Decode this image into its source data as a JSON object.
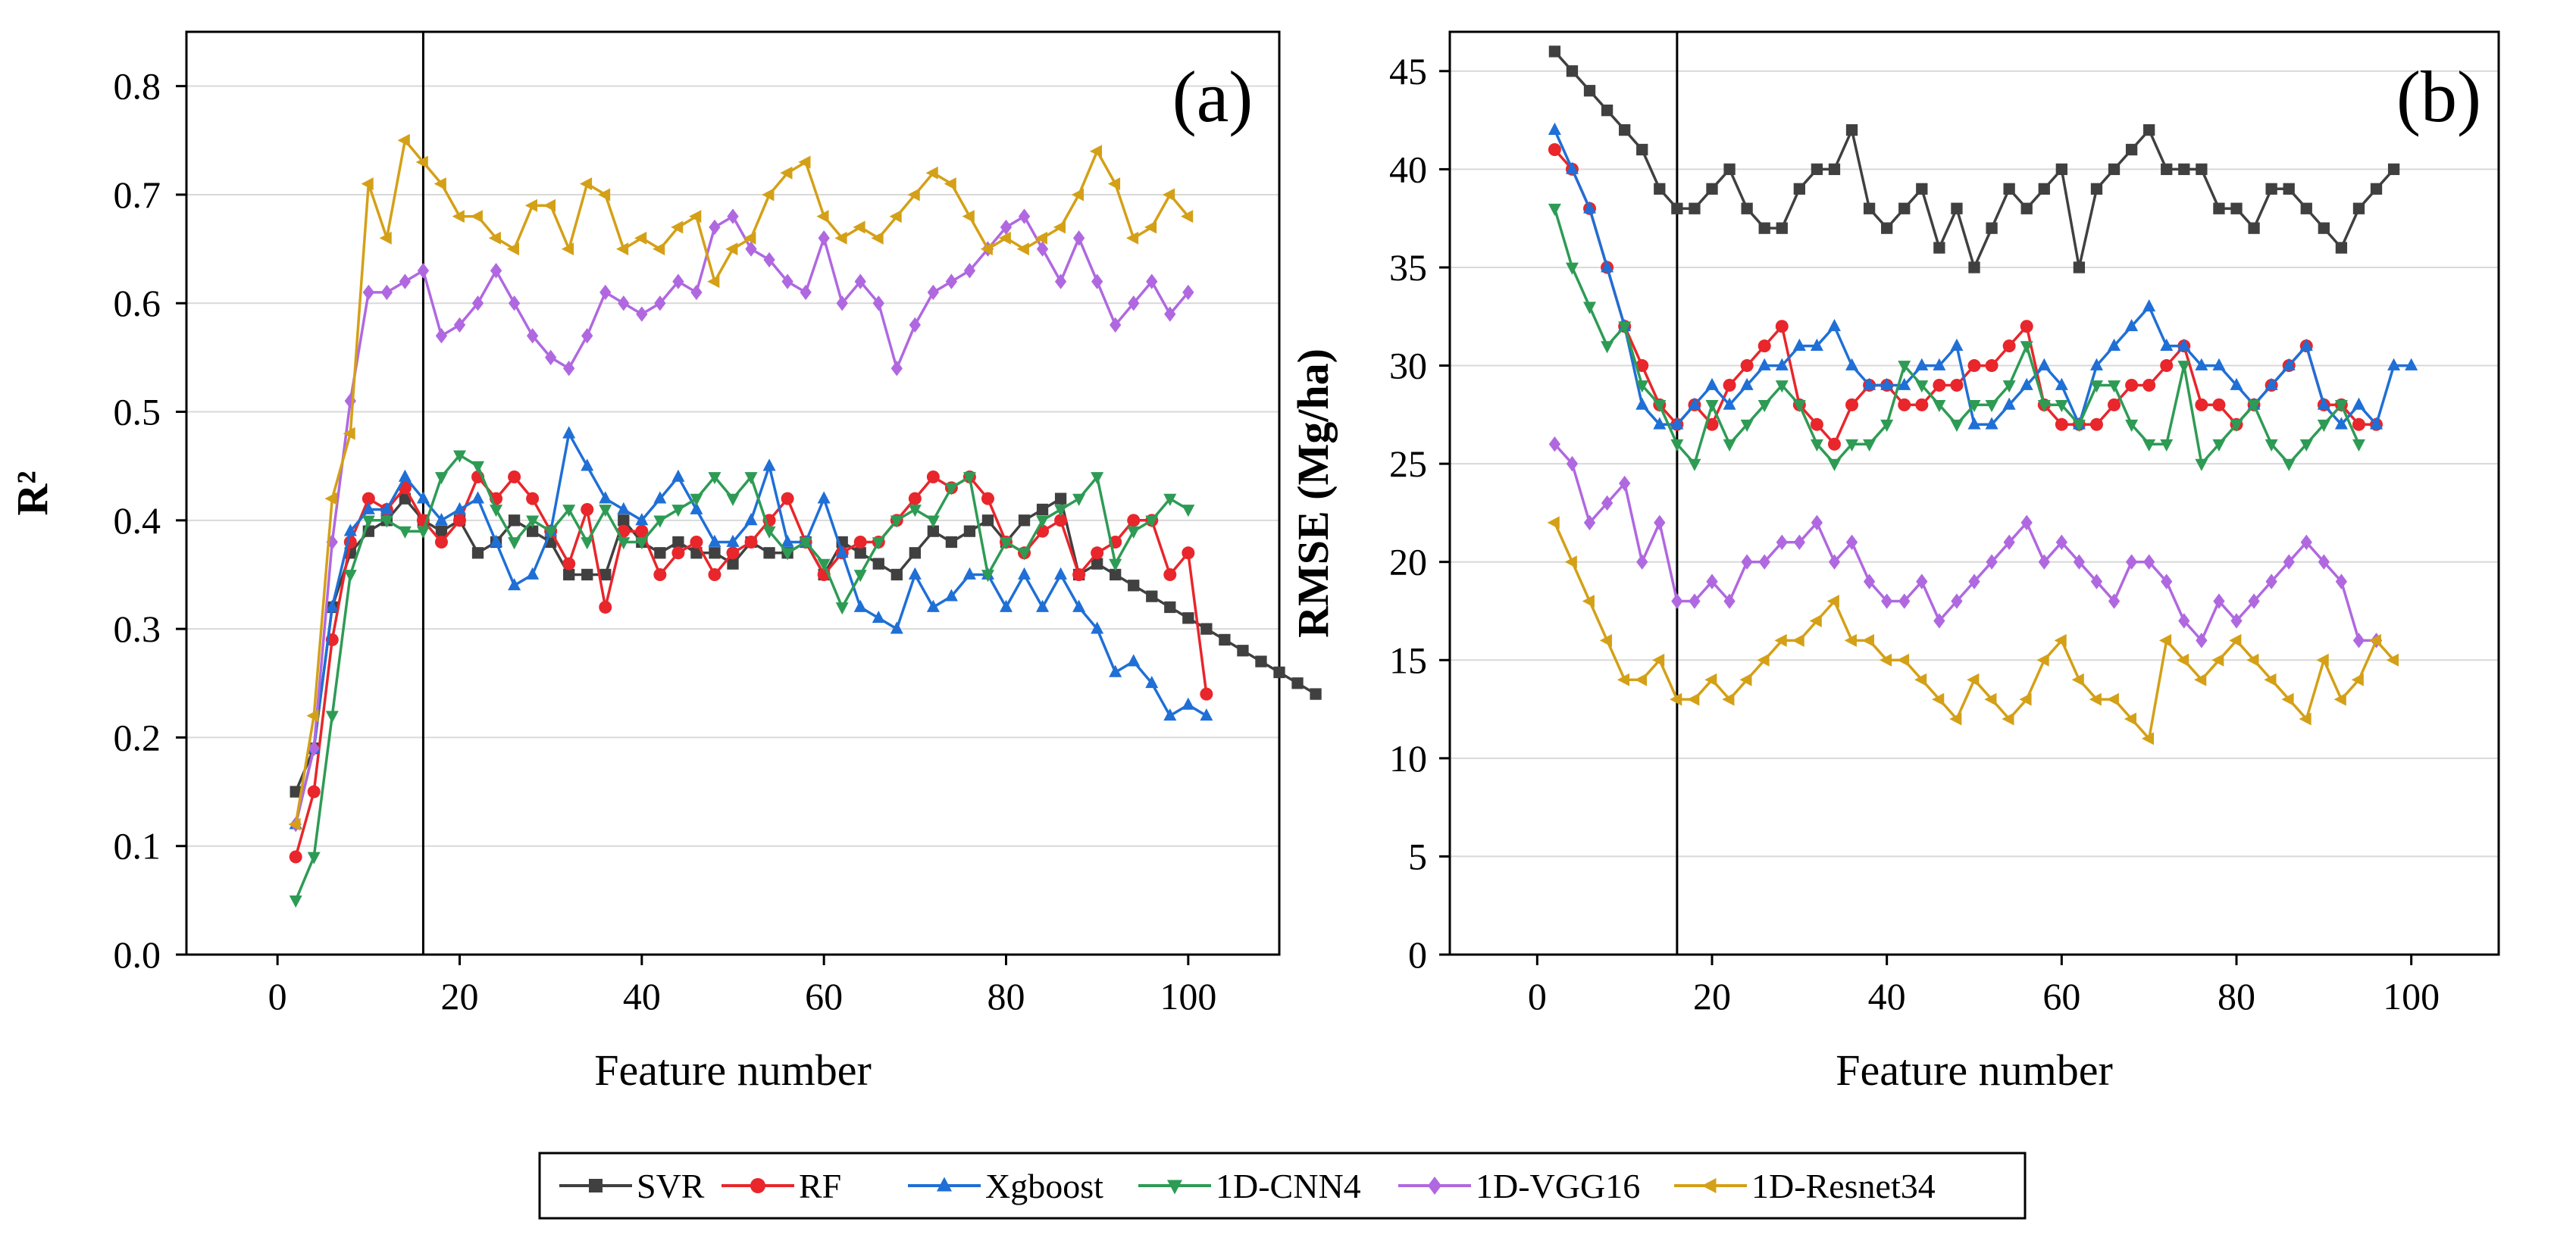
{
  "chart_data": [
    {
      "type": "line",
      "panel_label": "(a)",
      "xlabel": "Feature number",
      "ylabel": "R²",
      "xlim": [
        -10,
        110
      ],
      "ylim": [
        0.0,
        0.85
      ],
      "xticks": [
        0,
        20,
        40,
        60,
        80,
        100
      ],
      "yticks": [
        0.0,
        0.1,
        0.2,
        0.3,
        0.4,
        0.5,
        0.6,
        0.7,
        0.8
      ],
      "ytick_decimals": 1,
      "grid": true,
      "vertical_line_x": 16,
      "x_start": 2,
      "x_step": 2,
      "series": [
        {
          "name": "SVR",
          "values": [
            0.15,
            0.19,
            0.32,
            0.37,
            0.39,
            0.4,
            0.42,
            0.4,
            0.39,
            0.4,
            0.37,
            0.38,
            0.4,
            0.39,
            0.38,
            0.35,
            0.35,
            0.35,
            0.4,
            0.38,
            0.37,
            0.38,
            0.37,
            0.37,
            0.36,
            0.38,
            0.37,
            0.37,
            0.38,
            0.35,
            0.38,
            0.37,
            0.36,
            0.35,
            0.37,
            0.39,
            0.38,
            0.39,
            0.4,
            0.38,
            0.4,
            0.41,
            0.42,
            0.35,
            0.36,
            0.35,
            0.34,
            0.33,
            0.32,
            0.31,
            0.3,
            0.29,
            0.28,
            0.27,
            0.26,
            0.25,
            0.24
          ]
        },
        {
          "name": "RF",
          "values": [
            0.09,
            0.15,
            0.29,
            0.38,
            0.42,
            0.41,
            0.43,
            0.4,
            0.38,
            0.4,
            0.44,
            0.42,
            0.44,
            0.42,
            0.39,
            0.36,
            0.41,
            0.32,
            0.39,
            0.39,
            0.35,
            0.37,
            0.38,
            0.35,
            0.37,
            0.38,
            0.4,
            0.42,
            0.38,
            0.35,
            0.37,
            0.38,
            0.38,
            0.4,
            0.42,
            0.44,
            0.43,
            0.44,
            0.42,
            0.38,
            0.37,
            0.39,
            0.4,
            0.35,
            0.37,
            0.38,
            0.4,
            0.4,
            0.35,
            0.37,
            0.24
          ]
        },
        {
          "name": "Xgboost",
          "values": [
            0.12,
            0.19,
            0.32,
            0.39,
            0.41,
            0.41,
            0.44,
            0.42,
            0.4,
            0.41,
            0.42,
            0.38,
            0.34,
            0.35,
            0.39,
            0.48,
            0.45,
            0.42,
            0.41,
            0.4,
            0.42,
            0.44,
            0.41,
            0.38,
            0.38,
            0.4,
            0.45,
            0.38,
            0.38,
            0.42,
            0.37,
            0.32,
            0.31,
            0.3,
            0.35,
            0.32,
            0.33,
            0.35,
            0.35,
            0.32,
            0.35,
            0.32,
            0.35,
            0.32,
            0.3,
            0.26,
            0.27,
            0.25,
            0.22,
            0.23,
            0.22
          ]
        },
        {
          "name": "1D-CNN4",
          "values": [
            0.05,
            0.09,
            0.22,
            0.35,
            0.4,
            0.4,
            0.39,
            0.39,
            0.44,
            0.46,
            0.45,
            0.41,
            0.38,
            0.4,
            0.39,
            0.41,
            0.38,
            0.41,
            0.38,
            0.38,
            0.4,
            0.41,
            0.42,
            0.44,
            0.42,
            0.44,
            0.39,
            0.37,
            0.38,
            0.36,
            0.32,
            0.35,
            0.38,
            0.4,
            0.41,
            0.4,
            0.43,
            0.44,
            0.35,
            0.38,
            0.37,
            0.4,
            0.41,
            0.42,
            0.44,
            0.36,
            0.39,
            0.4,
            0.42,
            0.41
          ]
        },
        {
          "name": "1D-VGG16",
          "values": [
            0.12,
            0.19,
            0.38,
            0.51,
            0.61,
            0.61,
            0.62,
            0.63,
            0.57,
            0.58,
            0.6,
            0.63,
            0.6,
            0.57,
            0.55,
            0.54,
            0.57,
            0.61,
            0.6,
            0.59,
            0.6,
            0.62,
            0.61,
            0.67,
            0.68,
            0.65,
            0.64,
            0.62,
            0.61,
            0.66,
            0.6,
            0.62,
            0.6,
            0.54,
            0.58,
            0.61,
            0.62,
            0.63,
            0.65,
            0.67,
            0.68,
            0.65,
            0.62,
            0.66,
            0.62,
            0.58,
            0.6,
            0.62,
            0.59,
            0.61
          ]
        },
        {
          "name": "1D-Resnet34",
          "values": [
            0.12,
            0.22,
            0.42,
            0.48,
            0.71,
            0.66,
            0.75,
            0.73,
            0.71,
            0.68,
            0.68,
            0.66,
            0.65,
            0.69,
            0.69,
            0.65,
            0.71,
            0.7,
            0.65,
            0.66,
            0.65,
            0.67,
            0.68,
            0.62,
            0.65,
            0.66,
            0.7,
            0.72,
            0.73,
            0.68,
            0.66,
            0.67,
            0.66,
            0.68,
            0.7,
            0.72,
            0.71,
            0.68,
            0.65,
            0.66,
            0.65,
            0.66,
            0.67,
            0.7,
            0.74,
            0.71,
            0.66,
            0.67,
            0.7,
            0.68
          ]
        }
      ]
    },
    {
      "type": "line",
      "panel_label": "(b)",
      "xlabel": "Feature number",
      "ylabel": "RMSE (Mg/ha)",
      "xlim": [
        -10,
        110
      ],
      "ylim": [
        0,
        47
      ],
      "xticks": [
        0,
        20,
        40,
        60,
        80,
        100
      ],
      "yticks": [
        0,
        5,
        10,
        15,
        20,
        25,
        30,
        35,
        40,
        45
      ],
      "ytick_decimals": 0,
      "grid": true,
      "vertical_line_x": 16,
      "x_start": 2,
      "x_step": 2,
      "series": [
        {
          "name": "SVR",
          "values": [
            46,
            45,
            44,
            43,
            42,
            41,
            39,
            38,
            38,
            39,
            40,
            38,
            37,
            37,
            39,
            40,
            40,
            42,
            38,
            37,
            38,
            39,
            36,
            38,
            35,
            37,
            39,
            38,
            39,
            40,
            35,
            39,
            40,
            41,
            42,
            40,
            40,
            40,
            38,
            38,
            37,
            39,
            39,
            38,
            37,
            36,
            38,
            39,
            40
          ]
        },
        {
          "name": "RF",
          "values": [
            41,
            40,
            38,
            35,
            32,
            30,
            28,
            27,
            28,
            27,
            29,
            30,
            31,
            32,
            28,
            27,
            26,
            28,
            29,
            29,
            28,
            28,
            29,
            29,
            30,
            30,
            31,
            32,
            28,
            27,
            27,
            27,
            28,
            29,
            29,
            30,
            31,
            28,
            28,
            27,
            28,
            29,
            30,
            31,
            28,
            28,
            27,
            27
          ]
        },
        {
          "name": "Xgboost",
          "values": [
            42,
            40,
            38,
            35,
            32,
            28,
            27,
            27,
            28,
            29,
            28,
            29,
            30,
            30,
            31,
            31,
            32,
            30,
            29,
            29,
            29,
            30,
            30,
            31,
            27,
            27,
            28,
            29,
            30,
            29,
            27,
            30,
            31,
            32,
            33,
            31,
            31,
            30,
            30,
            29,
            28,
            29,
            30,
            31,
            28,
            27,
            28,
            27,
            30,
            30
          ]
        },
        {
          "name": "1D-CNN4",
          "values": [
            38,
            35,
            33,
            31,
            32,
            29,
            28,
            26,
            25,
            28,
            26,
            27,
            28,
            29,
            28,
            26,
            25,
            26,
            26,
            27,
            30,
            29,
            28,
            27,
            28,
            28,
            29,
            31,
            28,
            28,
            27,
            29,
            29,
            27,
            26,
            26,
            30,
            25,
            26,
            27,
            28,
            26,
            25,
            26,
            27,
            28,
            26
          ]
        },
        {
          "name": "1D-VGG16",
          "values": [
            26,
            25,
            22,
            23,
            24,
            20,
            22,
            18,
            18,
            19,
            18,
            20,
            20,
            21,
            21,
            22,
            20,
            21,
            19,
            18,
            18,
            19,
            17,
            18,
            19,
            20,
            21,
            22,
            20,
            21,
            20,
            19,
            18,
            20,
            20,
            19,
            17,
            16,
            18,
            17,
            18,
            19,
            20,
            21,
            20,
            19,
            16,
            16
          ]
        },
        {
          "name": "1D-Resnet34",
          "values": [
            22,
            20,
            18,
            16,
            14,
            14,
            15,
            13,
            13,
            14,
            13,
            14,
            15,
            16,
            16,
            17,
            18,
            16,
            16,
            15,
            15,
            14,
            13,
            12,
            14,
            13,
            12,
            13,
            15,
            16,
            14,
            13,
            13,
            12,
            11,
            16,
            15,
            14,
            15,
            16,
            15,
            14,
            13,
            12,
            15,
            13,
            14,
            16,
            15
          ]
        }
      ]
    }
  ],
  "legend": {
    "entries": [
      {
        "label": "SVR",
        "color": "#404040",
        "marker": "square"
      },
      {
        "label": "RF",
        "color": "#e8262b",
        "marker": "circle"
      },
      {
        "label": "Xgboost",
        "color": "#1f6fd6",
        "marker": "triangle-up"
      },
      {
        "label": "1D-CNN4",
        "color": "#2e9b55",
        "marker": "triangle-down"
      },
      {
        "label": "1D-VGG16",
        "color": "#b068e0",
        "marker": "diamond"
      },
      {
        "label": "1D-Resnet34",
        "color": "#d4a017",
        "marker": "triangle-left"
      }
    ]
  }
}
